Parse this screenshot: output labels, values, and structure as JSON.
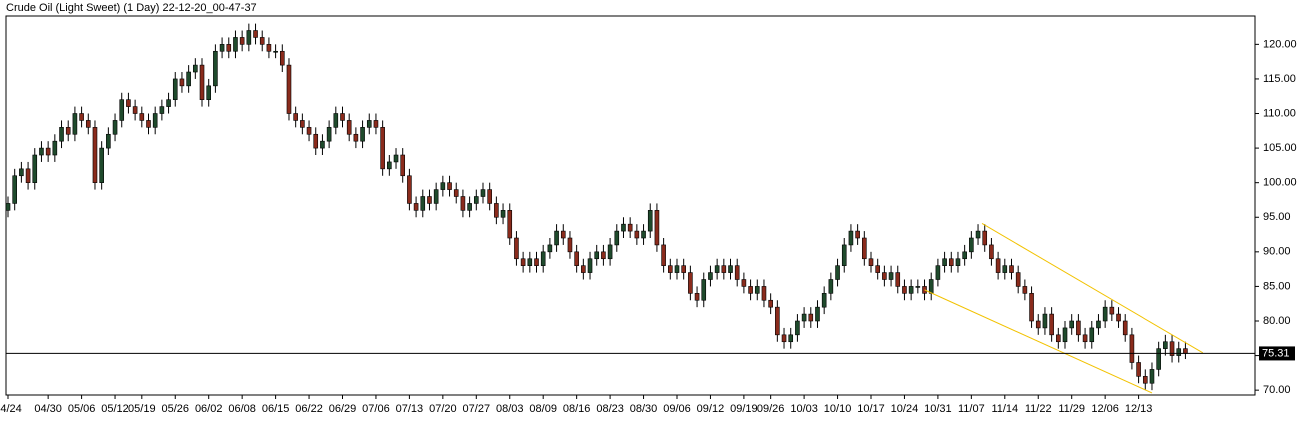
{
  "chart_data": {
    "type": "candlestick",
    "title": "Crude Oil (Light Sweet) (1 Day) 22-12-20_00-47-37",
    "categories": [
      "04/24",
      null,
      null,
      null,
      null,
      null,
      "04/30",
      null,
      null,
      null,
      null,
      "05/06",
      null,
      null,
      null,
      null,
      "05/12",
      null,
      null,
      null,
      "05/19",
      null,
      null,
      null,
      null,
      "05/26",
      null,
      null,
      null,
      null,
      "06/02",
      null,
      null,
      null,
      null,
      "06/08",
      null,
      null,
      null,
      null,
      "06/15",
      null,
      null,
      null,
      null,
      "06/22",
      null,
      null,
      null,
      null,
      "06/29",
      null,
      null,
      null,
      null,
      "07/06",
      null,
      null,
      null,
      null,
      "07/13",
      null,
      null,
      null,
      null,
      "07/20",
      null,
      null,
      null,
      null,
      "07/27",
      null,
      null,
      null,
      null,
      "08/03",
      null,
      null,
      null,
      null,
      "08/09",
      null,
      null,
      null,
      null,
      "08/16",
      null,
      null,
      null,
      null,
      "08/23",
      null,
      null,
      null,
      null,
      "08/30",
      null,
      null,
      null,
      null,
      "09/06",
      null,
      null,
      null,
      null,
      "09/12",
      null,
      null,
      null,
      null,
      "09/19",
      null,
      null,
      null,
      "09/26",
      null,
      null,
      null,
      null,
      "10/03",
      null,
      null,
      null,
      null,
      "10/10",
      null,
      null,
      null,
      null,
      "10/17",
      null,
      null,
      null,
      null,
      "10/24",
      null,
      null,
      null,
      null,
      "10/31",
      null,
      null,
      null,
      null,
      "11/07",
      null,
      null,
      null,
      null,
      "11/14",
      null,
      null,
      null,
      null,
      "11/22",
      null,
      null,
      null,
      null,
      "11/29",
      null,
      null,
      null,
      null,
      "12/06",
      null,
      null,
      null,
      null,
      "12/13",
      null,
      null,
      null,
      null,
      null,
      null,
      null
    ],
    "open": [
      96,
      97,
      101,
      102,
      100,
      104,
      105,
      104,
      106,
      108,
      107,
      110,
      109,
      108,
      100,
      105,
      107,
      109,
      112,
      111,
      110,
      109,
      108,
      110,
      111,
      112,
      115,
      114,
      116,
      117,
      112,
      114,
      119,
      120,
      119,
      121,
      120,
      122,
      121,
      120,
      119,
      119,
      117,
      110,
      109,
      108,
      107,
      105,
      106,
      108,
      110,
      109,
      107,
      106,
      108,
      109,
      108,
      102,
      103,
      104,
      101,
      97,
      96,
      98,
      97,
      99,
      100,
      99,
      98,
      96,
      97,
      98,
      99,
      97,
      95,
      96,
      92,
      89,
      88,
      89,
      88,
      90,
      91,
      93,
      92,
      90,
      88,
      87,
      89,
      90,
      89,
      91,
      93,
      94,
      93,
      92,
      93,
      96,
      91,
      88,
      87,
      88,
      87,
      84,
      83,
      86,
      87,
      88,
      87,
      88,
      86,
      85,
      84,
      85,
      83,
      82,
      78,
      77,
      78,
      80,
      81,
      80,
      82,
      84,
      86,
      88,
      91,
      93,
      92,
      89,
      88,
      87,
      86,
      87,
      85,
      84,
      85,
      85,
      84,
      86,
      88,
      89,
      88,
      89,
      90,
      92,
      93,
      91,
      89,
      87,
      88,
      87,
      85,
      84,
      80,
      79,
      81,
      78,
      77,
      79,
      80,
      78,
      77,
      79,
      80,
      82,
      81,
      80,
      78,
      74,
      72,
      71,
      73,
      76,
      77,
      75,
      76
    ],
    "high": [
      98,
      102,
      103,
      103,
      105,
      106,
      106,
      107,
      109,
      109,
      111,
      111,
      110,
      109,
      106,
      108,
      110,
      113,
      113,
      112,
      111,
      110,
      111,
      112,
      113,
      116,
      116,
      117,
      118,
      118,
      115,
      120,
      121,
      121,
      122,
      122,
      123,
      123,
      122,
      121,
      120,
      120,
      118,
      111,
      110,
      109,
      108,
      107,
      109,
      111,
      111,
      110,
      108,
      109,
      110,
      110,
      109,
      104,
      105,
      105,
      102,
      98,
      99,
      99,
      100,
      101,
      101,
      100,
      99,
      98,
      99,
      100,
      100,
      98,
      97,
      97,
      93,
      90,
      90,
      90,
      91,
      92,
      94,
      94,
      93,
      91,
      89,
      90,
      91,
      91,
      92,
      94,
      95,
      95,
      94,
      94,
      97,
      97,
      92,
      89,
      89,
      89,
      88,
      85,
      87,
      88,
      89,
      89,
      89,
      89,
      87,
      86,
      86,
      86,
      84,
      83,
      79,
      79,
      81,
      82,
      82,
      83,
      85,
      87,
      89,
      92,
      94,
      94,
      93,
      90,
      89,
      88,
      88,
      88,
      86,
      86,
      86,
      86,
      87,
      89,
      90,
      90,
      90,
      91,
      93,
      94,
      94,
      92,
      90,
      89,
      89,
      88,
      86,
      85,
      81,
      82,
      82,
      79,
      80,
      81,
      81,
      79,
      80,
      81,
      83,
      83,
      82,
      81,
      79,
      75,
      73,
      74,
      77,
      78,
      78,
      77,
      77
    ],
    "low": [
      95,
      96,
      100,
      99,
      99,
      103,
      103,
      103,
      105,
      106,
      106,
      108,
      107,
      99,
      99,
      104,
      106,
      108,
      110,
      109,
      108,
      107,
      107,
      109,
      110,
      111,
      113,
      113,
      115,
      111,
      111,
      113,
      118,
      118,
      118,
      119,
      119,
      120,
      119,
      118,
      118,
      116,
      109,
      108,
      107,
      106,
      104,
      104,
      105,
      107,
      108,
      106,
      105,
      105,
      107,
      107,
      101,
      101,
      102,
      100,
      96,
      95,
      95,
      96,
      96,
      98,
      98,
      97,
      95,
      95,
      96,
      97,
      96,
      94,
      94,
      91,
      88,
      87,
      87,
      87,
      87,
      89,
      90,
      91,
      89,
      87,
      86,
      86,
      88,
      88,
      88,
      90,
      92,
      92,
      91,
      91,
      92,
      90,
      87,
      86,
      86,
      86,
      83,
      82,
      82,
      85,
      86,
      86,
      86,
      85,
      84,
      83,
      83,
      82,
      81,
      77,
      76,
      76,
      77,
      79,
      79,
      79,
      81,
      83,
      85,
      87,
      90,
      91,
      88,
      87,
      86,
      85,
      85,
      84,
      83,
      83,
      84,
      83,
      83,
      85,
      87,
      87,
      87,
      88,
      89,
      91,
      90,
      88,
      86,
      86,
      86,
      84,
      83,
      79,
      78,
      78,
      77,
      76,
      76,
      78,
      77,
      76,
      76,
      78,
      79,
      80,
      79,
      77,
      73,
      71,
      70,
      70,
      72,
      75,
      74,
      74,
      74.5
    ],
    "close": [
      97,
      101,
      102,
      100,
      104,
      105,
      104,
      106,
      108,
      107,
      110,
      109,
      108,
      100,
      105,
      107,
      109,
      112,
      111,
      110,
      109,
      108,
      110,
      111,
      112,
      115,
      114,
      116,
      117,
      112,
      114,
      119,
      120,
      119,
      121,
      120,
      122,
      121,
      120,
      119,
      119,
      117,
      110,
      109,
      108,
      107,
      105,
      106,
      108,
      110,
      109,
      107,
      106,
      108,
      109,
      108,
      102,
      103,
      104,
      101,
      97,
      96,
      98,
      97,
      99,
      100,
      99,
      98,
      96,
      97,
      98,
      99,
      97,
      95,
      96,
      92,
      89,
      88,
      89,
      88,
      90,
      91,
      93,
      92,
      90,
      88,
      87,
      89,
      90,
      89,
      91,
      93,
      94,
      93,
      92,
      93,
      96,
      91,
      88,
      87,
      88,
      87,
      84,
      83,
      86,
      87,
      88,
      87,
      88,
      86,
      85,
      84,
      85,
      83,
      82,
      78,
      77,
      78,
      80,
      81,
      80,
      82,
      84,
      86,
      88,
      91,
      93,
      92,
      89,
      88,
      87,
      86,
      87,
      85,
      84,
      85,
      85,
      84,
      86,
      88,
      89,
      88,
      89,
      90,
      92,
      93,
      91,
      89,
      87,
      88,
      87,
      85,
      84,
      80,
      79,
      81,
      78,
      77,
      79,
      80,
      78,
      77,
      79,
      80,
      82,
      81,
      80,
      78,
      74,
      72,
      71,
      73,
      76,
      77,
      75,
      76,
      75.31
    ],
    "up_color": "#1f4a2c",
    "down_color": "#8a2b1c",
    "xlim": [
      -0.3,
      186.4
    ],
    "ylim": [
      69.3,
      124.1
    ],
    "yticks": [
      {
        "value": 70,
        "label": "70.00"
      },
      {
        "value": 75,
        "label": "75.00"
      },
      {
        "value": 80,
        "label": "80.00"
      },
      {
        "value": 85,
        "label": "85.00"
      },
      {
        "value": 90,
        "label": "90.00"
      },
      {
        "value": 95,
        "label": "95.00"
      },
      {
        "value": 100,
        "label": "100.00"
      },
      {
        "value": 105,
        "label": "105.00"
      },
      {
        "value": 110,
        "label": "110.00"
      },
      {
        "value": 115,
        "label": "115.00"
      },
      {
        "value": 120,
        "label": "120.00"
      }
    ],
    "last_price": 75.31,
    "trend_lines": [
      {
        "x": [
          145.6,
          178.6
        ],
        "y": [
          94.1,
          75.4
        ],
        "color": "#f2c200"
      },
      {
        "x": [
          137,
          171
        ],
        "y": [
          84.5,
          69.6
        ],
        "color": "#f2c200"
      }
    ]
  }
}
